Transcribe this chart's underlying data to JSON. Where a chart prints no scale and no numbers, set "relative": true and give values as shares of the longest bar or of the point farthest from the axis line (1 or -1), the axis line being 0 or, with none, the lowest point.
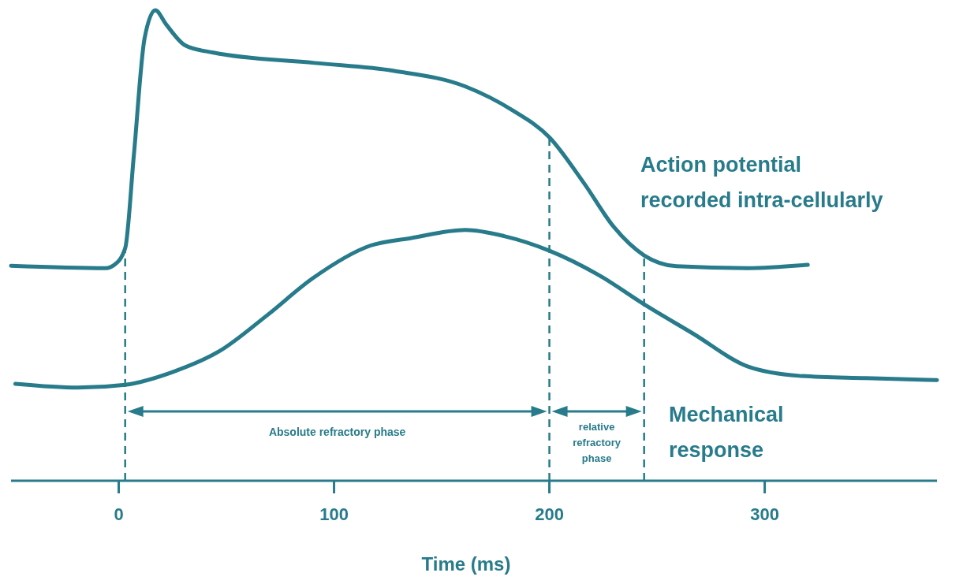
{
  "chart_data": {
    "type": "line",
    "relative": true,
    "xlabel": "Time (ms)",
    "xlim": [
      -50,
      380
    ],
    "xticks": [
      0,
      100,
      200,
      300
    ],
    "grid": false,
    "legend": "right",
    "marker": "none",
    "line_style": "solid",
    "series": [
      {
        "name": "Action potential recorded intra-cellularly",
        "color": "#277b8b",
        "x": [
          -50,
          -6,
          -2,
          3,
          7,
          12,
          17,
          22,
          31,
          44,
          91,
          128,
          161,
          183,
          200,
          216,
          230,
          244,
          259,
          292,
          320
        ],
        "values": [
          0.457,
          0.452,
          0.459,
          0.494,
          0.69,
          0.94,
          1.0,
          0.97,
          0.925,
          0.91,
          0.888,
          0.871,
          0.838,
          0.787,
          0.73,
          0.633,
          0.539,
          0.479,
          0.456,
          0.452,
          0.459
        ]
      },
      {
        "name": "Mechanical response",
        "color": "#277b8b",
        "x": [
          -48,
          -19,
          3,
          25,
          47,
          69,
          90,
          117,
          136,
          161,
          179,
          200,
          223,
          244,
          267,
          292,
          316,
          347,
          380
        ],
        "values": [
          0.206,
          0.198,
          0.204,
          0.231,
          0.276,
          0.352,
          0.43,
          0.5,
          0.516,
          0.533,
          0.52,
          0.489,
          0.437,
          0.375,
          0.312,
          0.243,
          0.223,
          0.218,
          0.214
        ]
      }
    ],
    "ref_lines": [
      {
        "axis": "x",
        "value": 3,
        "line_style": "dashed",
        "color": "#277b8b"
      },
      {
        "axis": "x",
        "value": 200,
        "line_style": "dashed",
        "color": "#277b8b"
      },
      {
        "axis": "x",
        "value": 244,
        "line_style": "dashed",
        "color": "#277b8b"
      }
    ],
    "annotations": [
      "Absolute refractory phase",
      "relative refractory phase"
    ]
  }
}
